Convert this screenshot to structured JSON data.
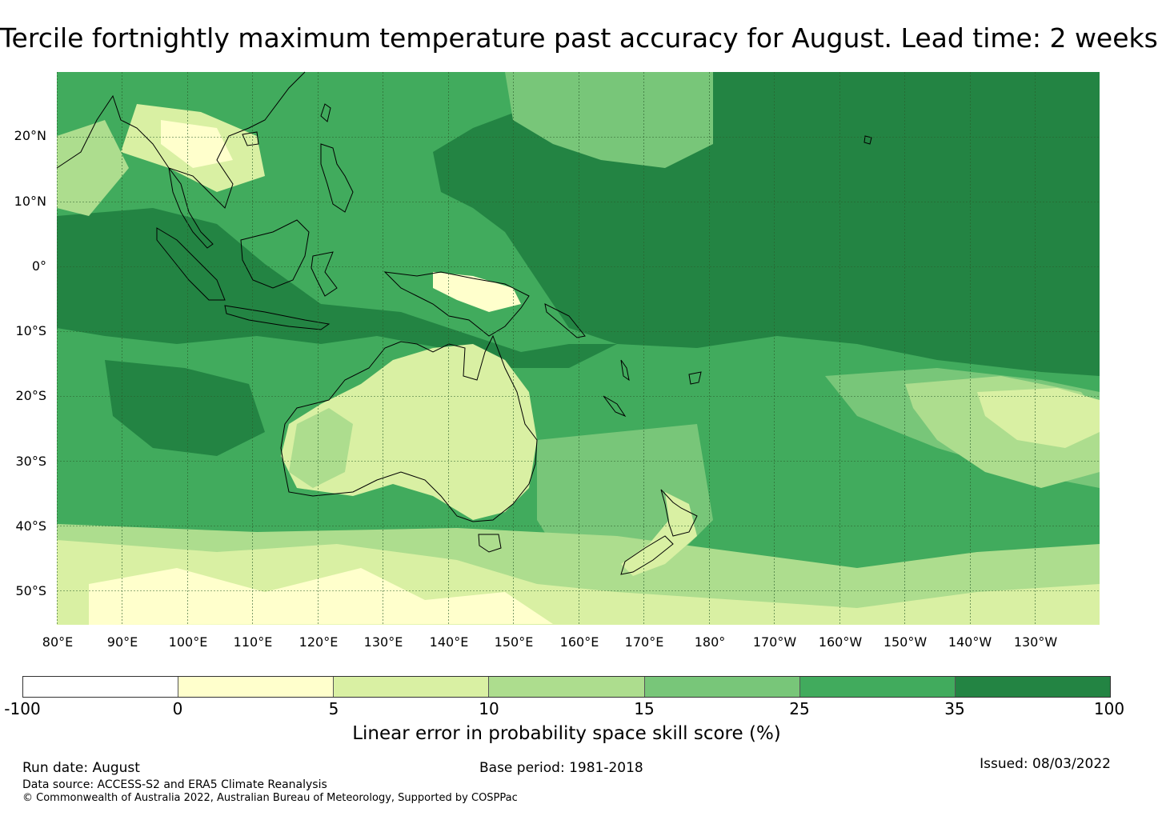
{
  "title": "Tercile fortnightly maximum temperature past accuracy for August. Lead time: 2 weeks",
  "map": {
    "lat_labels": [
      "20°N",
      "10°N",
      "0°",
      "10°S",
      "20°S",
      "30°S",
      "40°S",
      "50°S"
    ],
    "lon_labels": [
      "80°E",
      "90°E",
      "100°E",
      "110°E",
      "120°E",
      "130°E",
      "140°E",
      "150°E",
      "160°E",
      "170°E",
      "180°",
      "170°W",
      "160°W",
      "150°W",
      "140°W",
      "130°W"
    ],
    "region_colors": [
      "#ffffff",
      "#ffffcc",
      "#d9f0a3",
      "#addd8e",
      "#78c679",
      "#41ab5d",
      "#238443"
    ]
  },
  "colorbar": {
    "ticks": [
      "-100",
      "0",
      "5",
      "10",
      "15",
      "25",
      "35",
      "100"
    ],
    "colors": [
      "#ffffff",
      "#ffffcc",
      "#d9f0a3",
      "#addd8e",
      "#78c679",
      "#41ab5d",
      "#238443"
    ],
    "label": "Linear error in probability space skill score (%)"
  },
  "footer": {
    "run_date": "Run date: August",
    "base_period": "Base period: 1981-2018",
    "issued": "Issued: 08/03/2022",
    "data_source": "Data source: ACCESS-S2 and ERA5 Climate Reanalysis",
    "copyright": "© Commonwealth of Australia 2022, Australian Bureau of Meteorology, Supported by COSPPac"
  }
}
